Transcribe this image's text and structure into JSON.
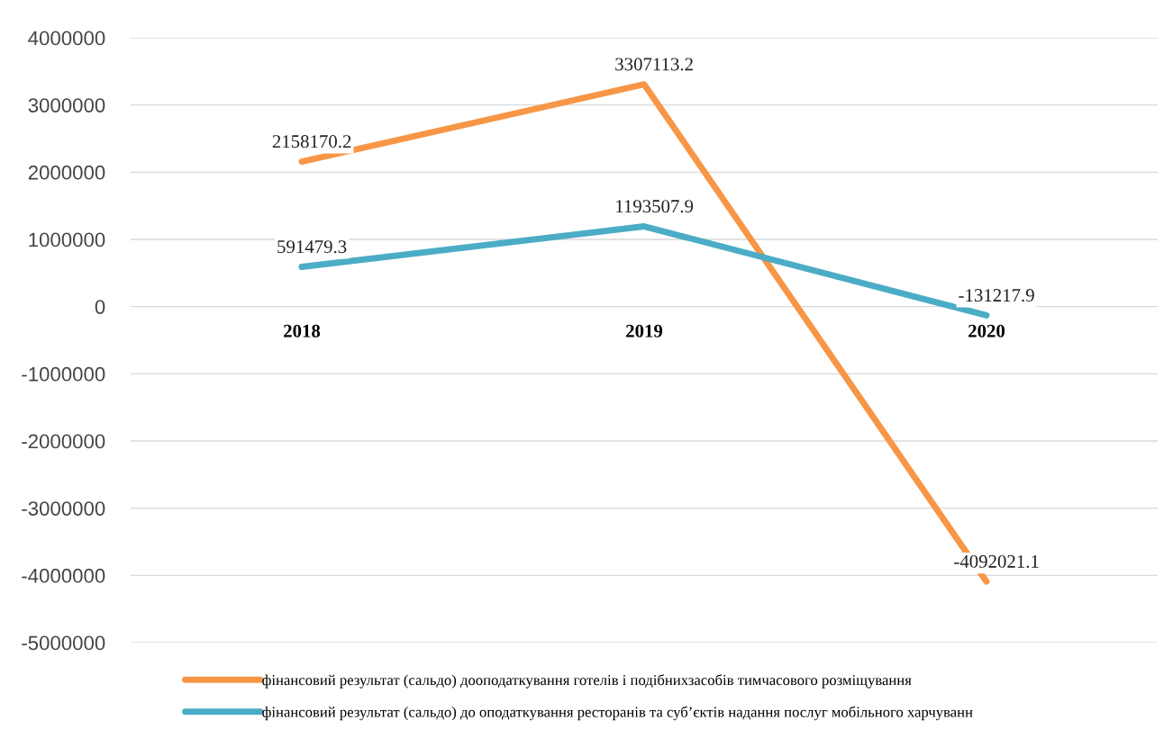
{
  "chart_data": {
    "type": "line",
    "categories": [
      "2018",
      "2019",
      "2020"
    ],
    "series": [
      {
        "name": "фінансовий результат (сальдо) дооподаткування готелів і подібнихзасобів тимчасового розміщування",
        "color": "#f79646",
        "values": [
          2158170.2,
          3307113.2,
          -4092021.1
        ]
      },
      {
        "name": "фінансовий результат (сальдо) до оподаткування ресторанів та суб’єктів надання послуг мобільного харчуванн",
        "color": "#4bacc6",
        "values": [
          591479.3,
          1193507.9,
          -131217.9
        ]
      }
    ],
    "ylim": [
      -5000000,
      4000000
    ],
    "yticks": [
      -5000000,
      -4000000,
      -3000000,
      -2000000,
      -1000000,
      0,
      1000000,
      2000000,
      3000000,
      4000000
    ],
    "grid": "y",
    "legend": "bottom",
    "data_labels": true,
    "marker": "none",
    "line_style": "solid"
  }
}
